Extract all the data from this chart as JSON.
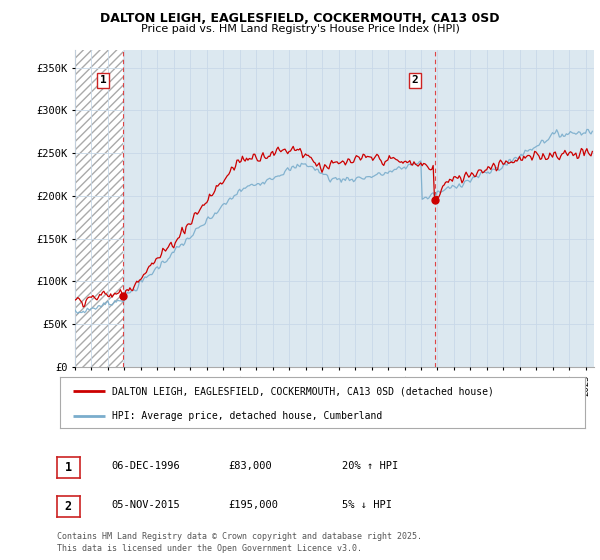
{
  "title_line1": "DALTON LEIGH, EAGLESFIELD, COCKERMOUTH, CA13 0SD",
  "title_line2": "Price paid vs. HM Land Registry's House Price Index (HPI)",
  "ylim": [
    0,
    370000
  ],
  "yticks": [
    0,
    50000,
    100000,
    150000,
    200000,
    250000,
    300000,
    350000
  ],
  "ytick_labels": [
    "£0",
    "£50K",
    "£100K",
    "£150K",
    "£200K",
    "£250K",
    "£300K",
    "£350K"
  ],
  "xlim_start": 1994.0,
  "xlim_end": 2025.5,
  "marker1_x": 1996.92,
  "marker1_y": 83000,
  "marker2_x": 2015.84,
  "marker2_y": 195000,
  "legend_entries": [
    "DALTON LEIGH, EAGLESFIELD, COCKERMOUTH, CA13 0SD (detached house)",
    "HPI: Average price, detached house, Cumberland"
  ],
  "legend_colors": [
    "#cc0000",
    "#7aadcc"
  ],
  "table_rows": [
    {
      "num": "1",
      "date": "06-DEC-1996",
      "price": "£83,000",
      "hpi": "20% ↑ HPI"
    },
    {
      "num": "2",
      "date": "05-NOV-2015",
      "price": "£195,000",
      "hpi": "5% ↓ HPI"
    }
  ],
  "footer": "Contains HM Land Registry data © Crown copyright and database right 2025.\nThis data is licensed under the Open Government Licence v3.0.",
  "price_line_color": "#cc0000",
  "hpi_line_color": "#7aadcc",
  "grid_color": "#c8d8e8",
  "background_color": "#ffffff",
  "plot_bg_color": "#dce8f0"
}
